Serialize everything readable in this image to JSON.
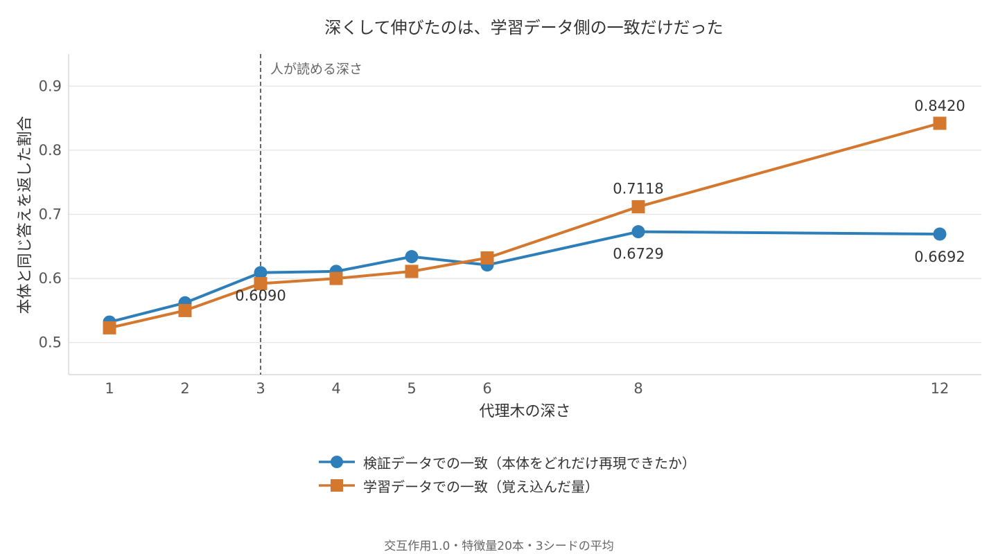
{
  "chart_data": {
    "type": "line",
    "title": "深くして伸びたのは、学習データ側の一致だけだった",
    "xlabel": "代理木の深さ",
    "ylabel": "本体と同じ答えを返した割合",
    "x": [
      1,
      2,
      3,
      4,
      5,
      6,
      8,
      12
    ],
    "x_tick_labels": [
      "1",
      "2",
      "3",
      "4",
      "5",
      "6",
      "8",
      "12"
    ],
    "y_ticks": [
      0.5,
      0.6,
      0.7,
      0.8,
      0.9
    ],
    "y_tick_labels": [
      "0.5",
      "0.6",
      "0.7",
      "0.8",
      "0.9"
    ],
    "ylim": [
      0.45,
      0.95
    ],
    "grid": "horizontal",
    "series": [
      {
        "name": "検証データでの一致（本体をどれだけ再現できたか）",
        "color": "#2E7EBA",
        "marker": "circle",
        "values": [
          0.532,
          0.562,
          0.609,
          0.611,
          0.634,
          0.621,
          0.6729,
          0.6692
        ]
      },
      {
        "name": "学習データでの一致（覚え込んだ量）",
        "color": "#D4782F",
        "marker": "square",
        "values": [
          0.523,
          0.55,
          0.592,
          0.6,
          0.611,
          0.632,
          0.7118,
          0.842
        ]
      }
    ],
    "data_labels": [
      {
        "series": 0,
        "index": 2,
        "text": "0.6090"
      },
      {
        "series": 0,
        "index": 6,
        "text": "0.6729"
      },
      {
        "series": 0,
        "index": 7,
        "text": "0.6692"
      },
      {
        "series": 1,
        "index": 6,
        "text": "0.7118"
      },
      {
        "series": 1,
        "index": 7,
        "text": "0.8420"
      }
    ],
    "reference_line": {
      "x": 3,
      "label": "人が読める深さ",
      "style": "dashed",
      "color": "#555555"
    },
    "legend_placement": "bottom-center",
    "footnote": "交互作用1.0・特徴量20本・3シードの平均"
  }
}
